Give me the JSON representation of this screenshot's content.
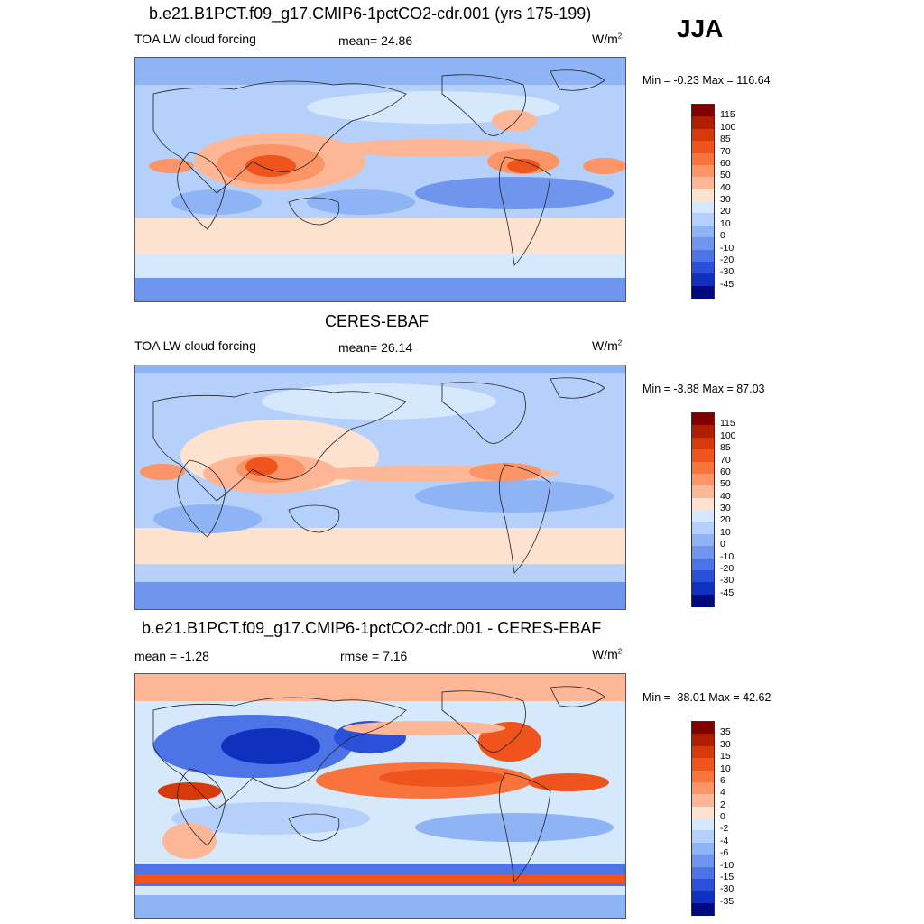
{
  "season": "JJA",
  "panels": [
    {
      "title": "b.e21.B1PCT.f09_g17.CMIP6-1pctCO2-cdr.001 (yrs 175-199)",
      "left_label": "TOA LW cloud forcing",
      "center_label": "mean=  24.86",
      "units_base": "W/m",
      "units_exp": "2",
      "minmax": "Min =  -0.23 Max = 116.64",
      "colorbar": {
        "ticks": [
          "115",
          "100",
          "85",
          "70",
          "60",
          "50",
          "40",
          "30",
          "20",
          "10",
          "0",
          "-10",
          "-20",
          "-30",
          "-45"
        ],
        "colors": [
          "#800000",
          "#b11d00",
          "#d63a0a",
          "#f0531b",
          "#f9743d",
          "#fb9466",
          "#fdb796",
          "#fde2cf",
          "#d6e8fb",
          "#b5d0fa",
          "#8fb4f5",
          "#6f95ee",
          "#4c74e6",
          "#2a50d9",
          "#1030c0",
          "#000a80"
        ]
      }
    },
    {
      "title": "CERES-EBAF",
      "left_label": "TOA LW cloud forcing",
      "center_label": "mean=  26.14",
      "units_base": "W/m",
      "units_exp": "2",
      "minmax": "Min =  -3.88 Max =  87.03",
      "colorbar": {
        "ticks": [
          "115",
          "100",
          "85",
          "70",
          "60",
          "50",
          "40",
          "30",
          "20",
          "10",
          "0",
          "-10",
          "-20",
          "-30",
          "-45"
        ],
        "colors": [
          "#800000",
          "#b11d00",
          "#d63a0a",
          "#f0531b",
          "#f9743d",
          "#fb9466",
          "#fdb796",
          "#fde2cf",
          "#d6e8fb",
          "#b5d0fa",
          "#8fb4f5",
          "#6f95ee",
          "#4c74e6",
          "#2a50d9",
          "#1030c0",
          "#000a80"
        ]
      }
    },
    {
      "title": "b.e21.B1PCT.f09_g17.CMIP6-1pctCO2-cdr.001 - CERES-EBAF",
      "left_label": "mean =  -1.28",
      "center_label": "rmse =   7.16",
      "units_base": "W/m",
      "units_exp": "2",
      "minmax": "Min = -38.01 Max =  42.62",
      "colorbar": {
        "ticks": [
          "35",
          "30",
          "15",
          "10",
          "6",
          "4",
          "2",
          "0",
          "-2",
          "-4",
          "-6",
          "-10",
          "-15",
          "-30",
          "-35"
        ],
        "colors": [
          "#800000",
          "#b11d00",
          "#d63a0a",
          "#f0531b",
          "#f9743d",
          "#fb9466",
          "#fdb796",
          "#fde2cf",
          "#d6e8fb",
          "#b5d0fa",
          "#8fb4f5",
          "#6f95ee",
          "#4c74e6",
          "#2a50d9",
          "#1030c0",
          "#000a80"
        ]
      }
    }
  ]
}
